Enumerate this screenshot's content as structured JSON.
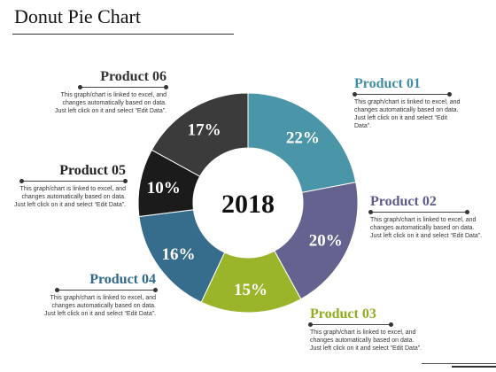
{
  "page": {
    "title": "Donut Pie Chart"
  },
  "chart_data": {
    "type": "pie",
    "center_label": "2018",
    "slices": [
      {
        "label": "Product 01",
        "value": 22,
        "display": "22%",
        "color": "#4a95a8"
      },
      {
        "label": "Product 02",
        "value": 20,
        "display": "20%",
        "color": "#64628f"
      },
      {
        "label": "Product 03",
        "value": 15,
        "display": "15%",
        "color": "#9ab52a"
      },
      {
        "label": "Product 04",
        "value": 16,
        "display": "16%",
        "color": "#366c8c"
      },
      {
        "label": "Product 05",
        "value": 10,
        "display": "10%",
        "color": "#1b1b1b"
      },
      {
        "label": "Product 06",
        "value": 17,
        "display": "17%",
        "color": "#3b3b3b"
      }
    ]
  },
  "labels": [
    {
      "name": "Product 01",
      "color": "#3f8ea3",
      "desc": [
        "This graph/chart is linked to excel, and",
        "changes automatically based on data.",
        "Just left click on it and select “Edit Data”."
      ]
    },
    {
      "name": "Product 02",
      "color": "#5d5b8a",
      "desc": [
        "This graph/chart is linked to excel, and",
        "changes automatically based on data.",
        "Just left click on it and select “Edit Data”."
      ]
    },
    {
      "name": "Product 03",
      "color": "#8fae1e",
      "desc": [
        "This graph/chart is linked to excel, and",
        "changes automatically based on data.",
        "Just left click on it and select “Edit Data”."
      ]
    },
    {
      "name": "Product 04",
      "color": "#2f6a8c",
      "desc": [
        "This graph/chart is linked to excel, and",
        "changes automatically based on data.",
        "Just left click on it and select “Edit Data”."
      ]
    },
    {
      "name": "Product 05",
      "color": "#222222",
      "desc": [
        "This graph/chart is linked to excel, and",
        "changes automatically based on data.",
        "Just left click on it and select “Edit Data”."
      ]
    },
    {
      "name": "Product 06",
      "color": "#333333",
      "desc": [
        "This graph/chart is linked to excel, and",
        "changes automatically based on data.",
        "Just left click on it and select “Edit Data”."
      ]
    }
  ]
}
